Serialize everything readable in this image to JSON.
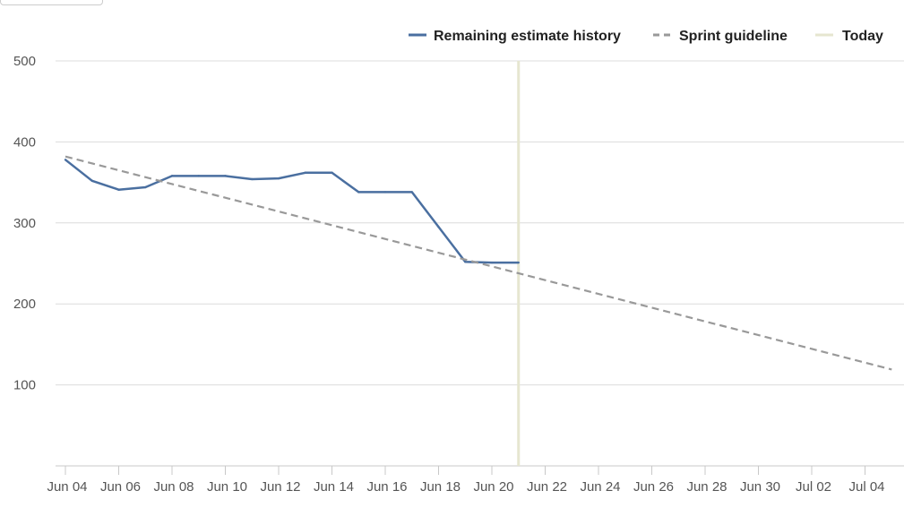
{
  "chart_data": {
    "type": "line",
    "x_dates": [
      "2018-06-04",
      "2018-06-05",
      "2018-06-06",
      "2018-06-07",
      "2018-06-08",
      "2018-06-09",
      "2018-06-10",
      "2018-06-11",
      "2018-06-12",
      "2018-06-13",
      "2018-06-14",
      "2018-06-15",
      "2018-06-16",
      "2018-06-17",
      "2018-06-18",
      "2018-06-19",
      "2018-06-20",
      "2018-06-21"
    ],
    "x_tick_labels": [
      "Jun 04",
      "Jun 06",
      "Jun 08",
      "Jun 10",
      "Jun 12",
      "Jun 14",
      "Jun 16",
      "Jun 18",
      "Jun 20",
      "Jun 22",
      "Jun 24",
      "Jun 26",
      "Jun 28",
      "Jun 30",
      "Jul 02",
      "Jul 04"
    ],
    "x_tick_dates": [
      "2018-06-04",
      "2018-06-06",
      "2018-06-08",
      "2018-06-10",
      "2018-06-12",
      "2018-06-14",
      "2018-06-16",
      "2018-06-18",
      "2018-06-20",
      "2018-06-22",
      "2018-06-24",
      "2018-06-26",
      "2018-06-28",
      "2018-06-30",
      "2018-07-02",
      "2018-07-04"
    ],
    "ylim": [
      0,
      500
    ],
    "y_ticks": [
      100,
      200,
      300,
      400,
      500
    ],
    "grid": true,
    "legend_position": "top-right",
    "series": [
      {
        "name": "Remaining estimate history",
        "color": "#4a6fa0",
        "style": "solid",
        "x": [
          "2018-06-04",
          "2018-06-05",
          "2018-06-06",
          "2018-06-07",
          "2018-06-08",
          "2018-06-09",
          "2018-06-10",
          "2018-06-11",
          "2018-06-12",
          "2018-06-13",
          "2018-06-14",
          "2018-06-15",
          "2018-06-16",
          "2018-06-17",
          "2018-06-18",
          "2018-06-19",
          "2018-06-20",
          "2018-06-21"
        ],
        "values": [
          378,
          352,
          341,
          344,
          358,
          358,
          358,
          354,
          355,
          362,
          362,
          338,
          338,
          338,
          295,
          252,
          251,
          251
        ]
      },
      {
        "name": "Sprint guideline",
        "color": "#999999",
        "style": "dashed",
        "x": [
          "2018-06-04",
          "2018-07-05"
        ],
        "values": [
          382,
          119
        ]
      }
    ],
    "markers": [
      {
        "name": "Today",
        "color": "#e6e6d0",
        "x": "2018-06-21"
      }
    ]
  }
}
